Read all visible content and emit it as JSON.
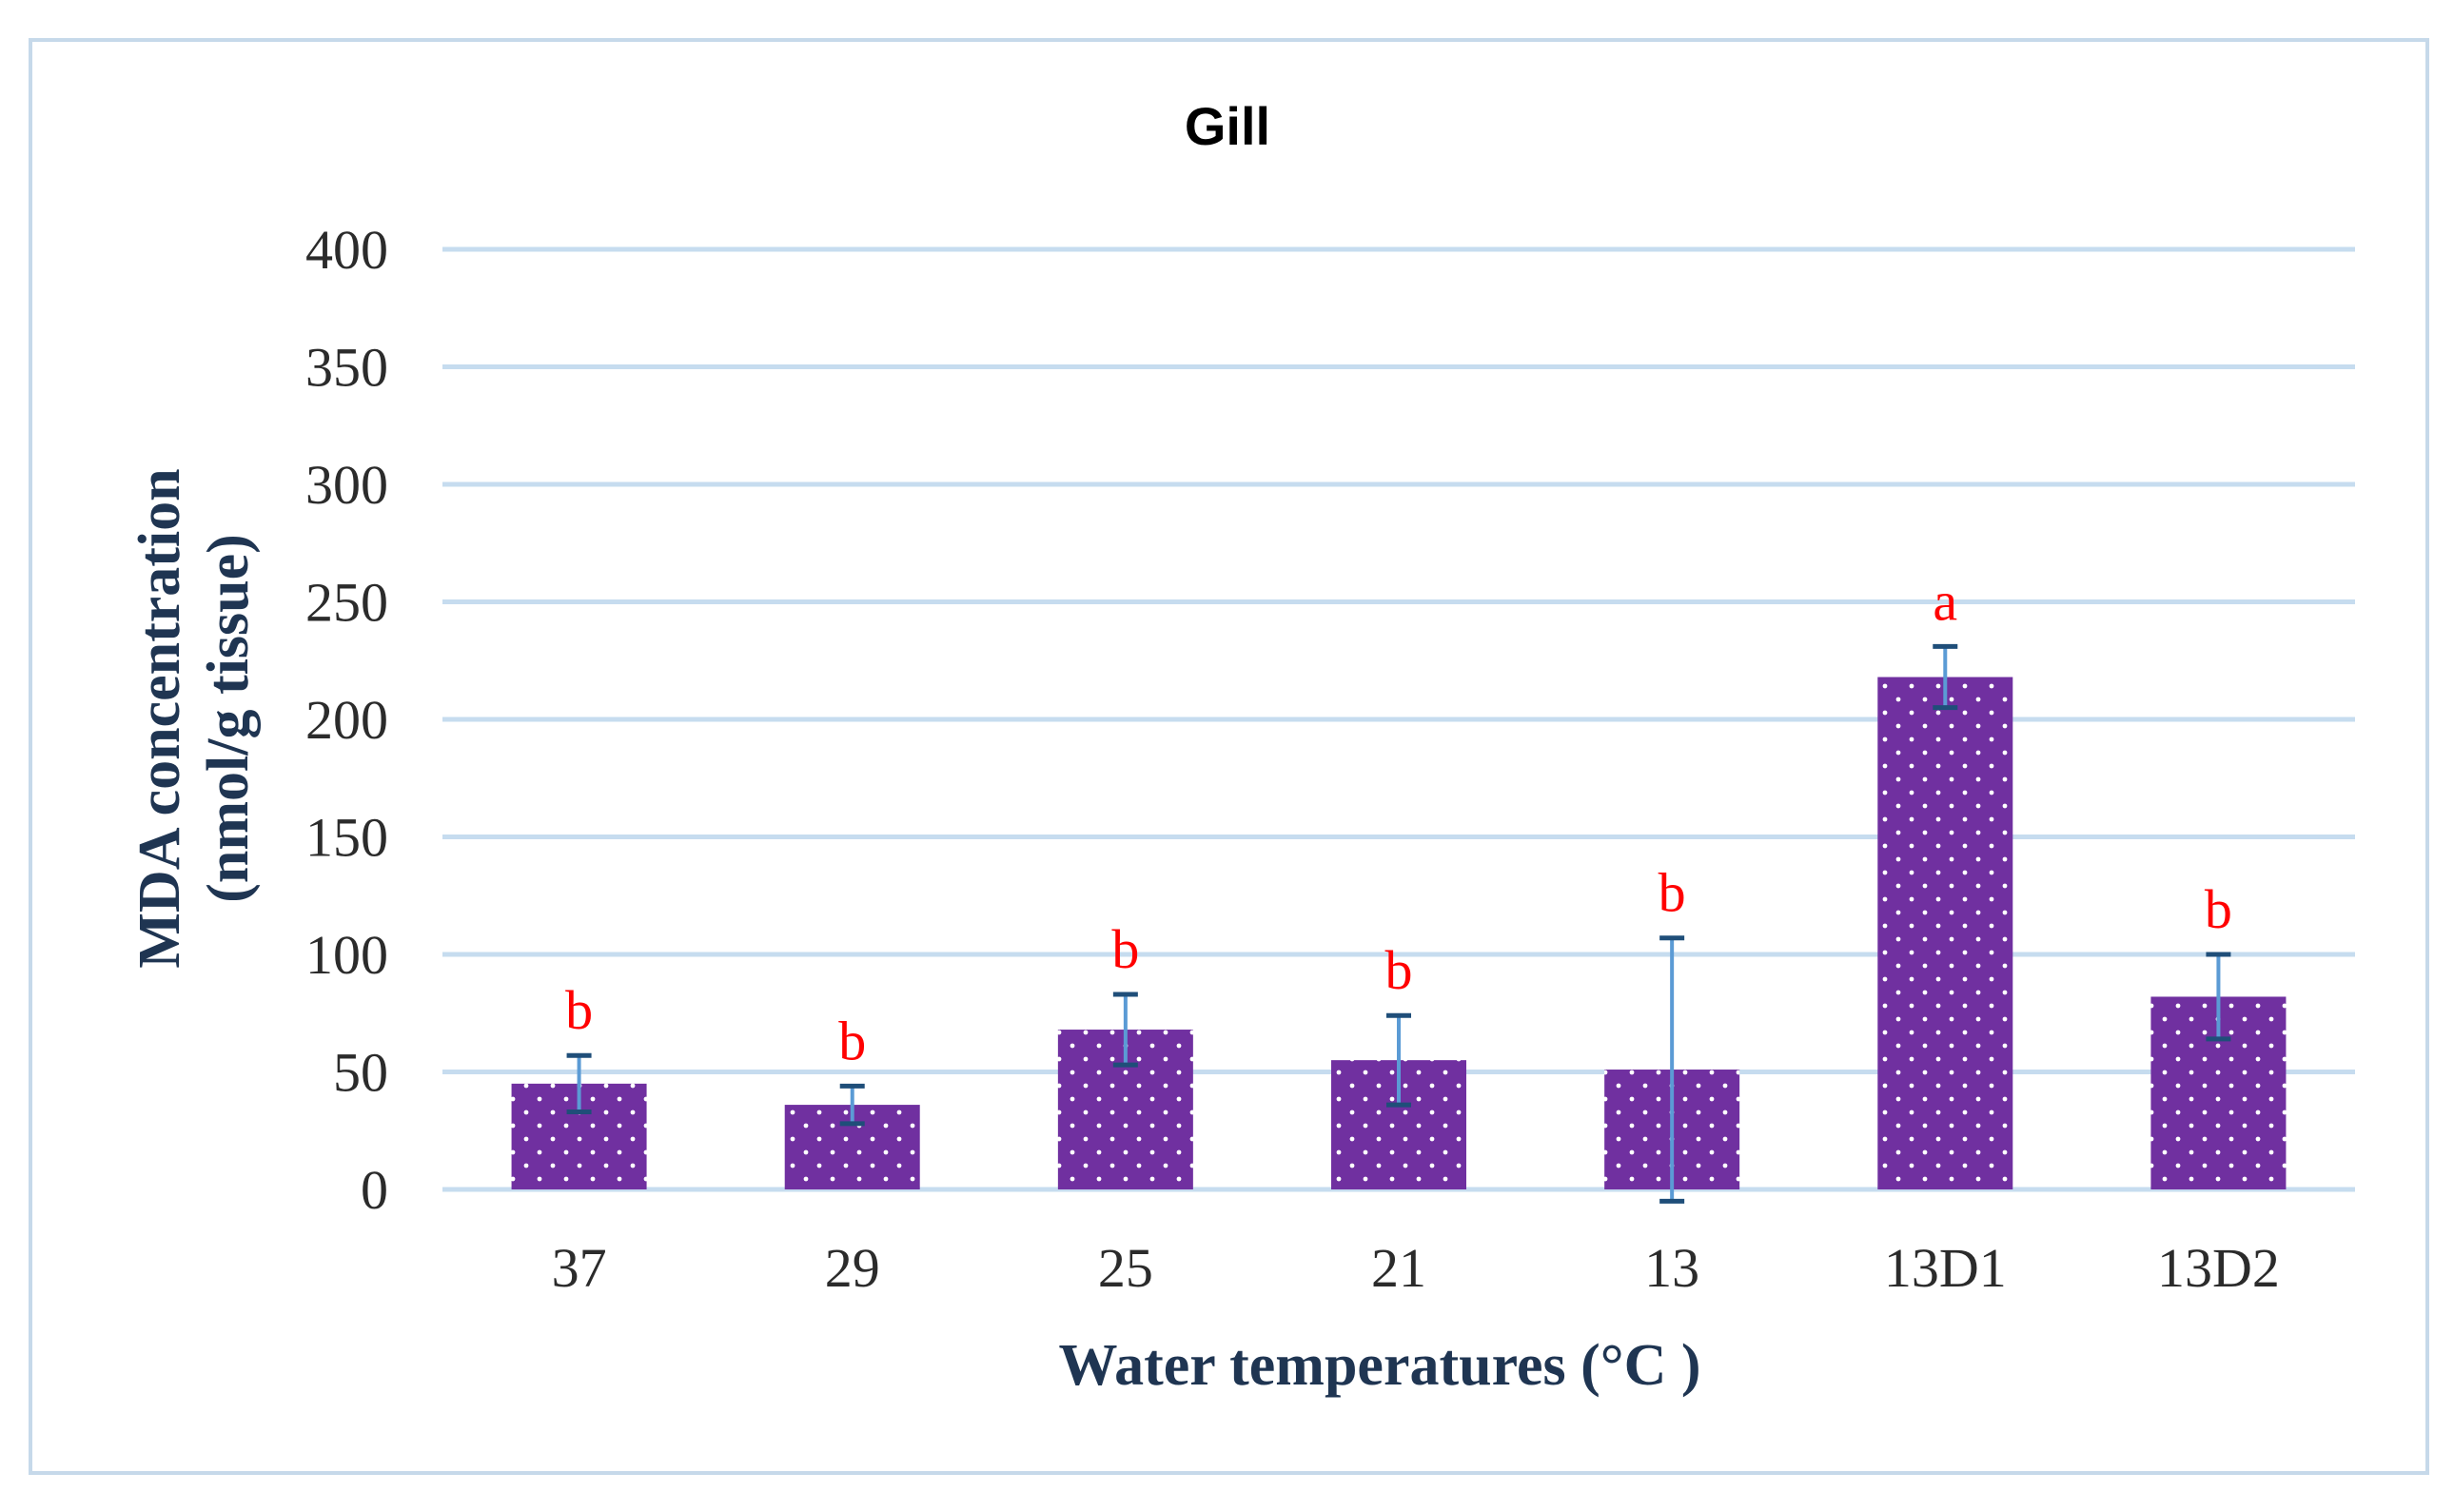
{
  "chart_data": {
    "type": "bar",
    "title": "Gill",
    "xlabel": "Water temperatures (°C )",
    "ylabel": [
      "MDA concentration",
      "(nmol/g tissue)"
    ],
    "ylim": [
      0,
      400
    ],
    "yticks": [
      0,
      50,
      100,
      150,
      200,
      250,
      300,
      350,
      400
    ],
    "grid": true,
    "categories": [
      "37",
      "29",
      "25",
      "21",
      "13",
      "13D1",
      "13D2"
    ],
    "values": [
      45,
      36,
      68,
      55,
      51,
      218,
      82
    ],
    "errors": [
      12,
      8,
      15,
      19,
      56,
      13,
      18
    ],
    "significance": [
      "b",
      "b",
      "b",
      "b",
      "b",
      "a",
      "b"
    ],
    "bar_color": "#7030a0",
    "dot_color": "#ffffff",
    "error_color": "#5b9bd5",
    "error_cap_color": "#1f4e79",
    "gridline_color": "#c6dcef",
    "label_color": "#ff0000"
  }
}
